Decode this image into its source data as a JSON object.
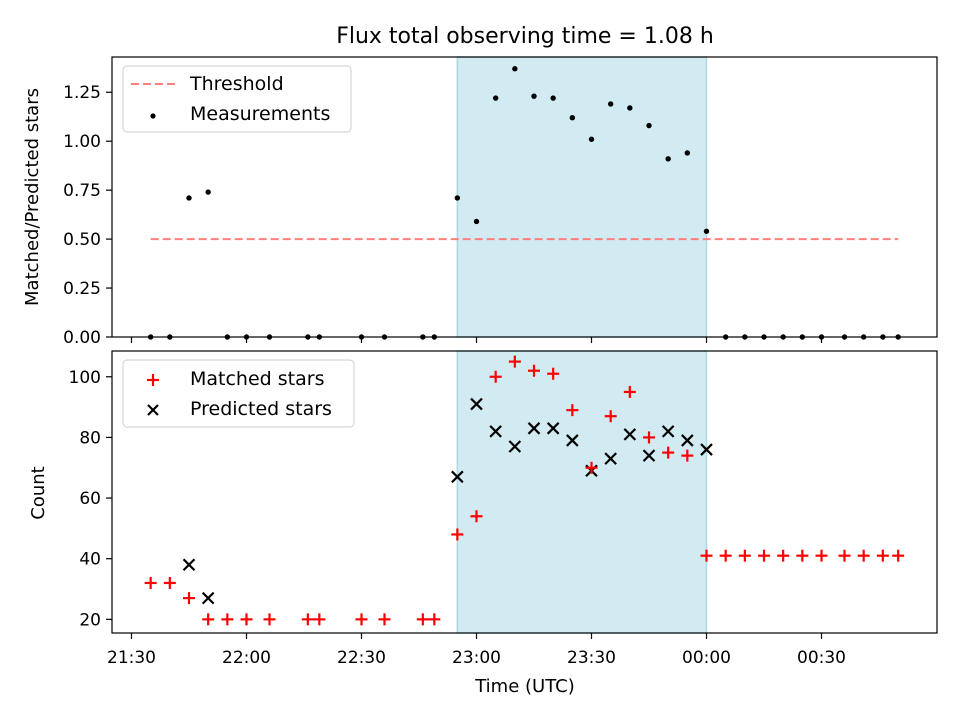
{
  "title": "Flux total observing time = 1.08 h",
  "xlabel": "Time (UTC)",
  "x_ticks": [
    "21:30",
    "22:00",
    "22:30",
    "23:00",
    "23:30",
    "00:00",
    "00:30"
  ],
  "colors": {
    "highlight": "#add8e6",
    "threshold": "#ff7f7f",
    "measurements": "#000000",
    "matched": "#ff0000",
    "predicted": "#000000"
  },
  "chart_data": [
    {
      "type": "scatter",
      "panel": "top",
      "ylabel": "Matched/Predicted stars",
      "ylim": [
        0,
        1.43
      ],
      "y_ticks": [
        "0.00",
        "0.25",
        "0.50",
        "0.75",
        "1.00",
        "1.25"
      ],
      "x_axis": "time (HH:MM UTC)",
      "highlight_span": [
        "22:55",
        "00:00"
      ],
      "legend": {
        "placement": "upper-left",
        "entries": [
          "Threshold",
          "Measurements"
        ]
      },
      "threshold": {
        "name": "Threshold",
        "y": 0.5,
        "x": [
          "21:35",
          "00:50"
        ]
      },
      "series": [
        {
          "name": "Measurements",
          "x": [
            "21:35",
            "21:40",
            "21:45",
            "21:50",
            "21:55",
            "22:00",
            "22:06",
            "22:16",
            "22:19",
            "22:30",
            "22:36",
            "22:46",
            "22:49",
            "22:55",
            "23:00",
            "23:05",
            "23:10",
            "23:15",
            "23:20",
            "23:25",
            "23:30",
            "23:35",
            "23:40",
            "23:45",
            "23:50",
            "23:55",
            "00:00",
            "00:05",
            "00:10",
            "00:15",
            "00:20",
            "00:25",
            "00:30",
            "00:36",
            "00:41",
            "00:46",
            "00:50"
          ],
          "y": [
            0,
            0,
            0.71,
            0.74,
            0,
            0,
            0,
            0,
            0,
            0,
            0,
            0,
            0,
            0.71,
            0.59,
            1.22,
            1.37,
            1.23,
            1.22,
            1.12,
            1.01,
            1.19,
            1.17,
            1.08,
            0.91,
            0.94,
            0.54,
            0,
            0,
            0,
            0,
            0,
            0,
            0,
            0,
            0,
            0
          ]
        }
      ]
    },
    {
      "type": "scatter",
      "panel": "bottom",
      "ylabel": "Count",
      "ylim": [
        15.5,
        108.5
      ],
      "y_ticks": [
        "20",
        "40",
        "60",
        "80",
        "100"
      ],
      "x_axis": "time (HH:MM UTC)",
      "highlight_span": [
        "22:55",
        "00:00"
      ],
      "legend": {
        "placement": "upper-left",
        "entries": [
          "Matched stars",
          "Predicted stars"
        ]
      },
      "series": [
        {
          "name": "Matched stars",
          "marker": "+",
          "x": [
            "21:35",
            "21:40",
            "21:45",
            "21:50",
            "21:55",
            "22:00",
            "22:06",
            "22:16",
            "22:19",
            "22:30",
            "22:36",
            "22:46",
            "22:49",
            "22:55",
            "23:00",
            "23:05",
            "23:10",
            "23:15",
            "23:20",
            "23:25",
            "23:30",
            "23:35",
            "23:40",
            "23:45",
            "23:50",
            "23:55",
            "00:00",
            "00:05",
            "00:10",
            "00:15",
            "00:20",
            "00:25",
            "00:30",
            "00:36",
            "00:41",
            "00:46",
            "00:50"
          ],
          "y": [
            32,
            32,
            27,
            20,
            20,
            20,
            20,
            20,
            20,
            20,
            20,
            20,
            20,
            48,
            54,
            100,
            105,
            102,
            101,
            89,
            70,
            87,
            95,
            80,
            75,
            74,
            41,
            41,
            41,
            41,
            41,
            41,
            41,
            41,
            41,
            41,
            41
          ]
        },
        {
          "name": "Predicted stars",
          "marker": "x",
          "x": [
            "21:45",
            "21:50",
            "22:55",
            "23:00",
            "23:05",
            "23:10",
            "23:15",
            "23:20",
            "23:25",
            "23:30",
            "23:35",
            "23:40",
            "23:45",
            "23:50",
            "23:55",
            "00:00"
          ],
          "y": [
            38,
            27,
            67,
            91,
            82,
            77,
            83,
            83,
            79,
            69,
            73,
            81,
            74,
            82,
            79,
            76
          ]
        }
      ]
    }
  ]
}
